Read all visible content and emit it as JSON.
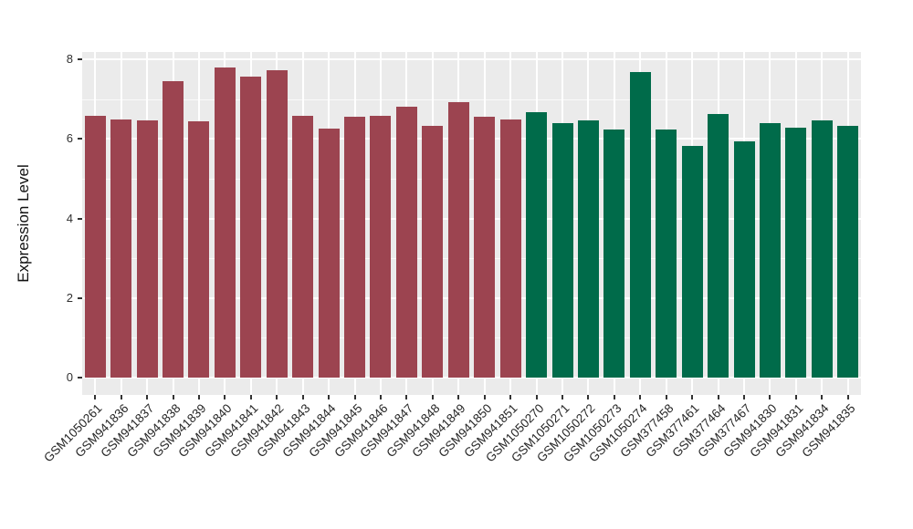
{
  "chart_data": {
    "type": "bar",
    "title": "",
    "ylabel": "Expression Level",
    "xlabel": "",
    "ylim": [
      0,
      8.19
    ],
    "yticks": [
      0,
      2,
      4,
      6,
      8
    ],
    "yticks_minor": [
      1,
      3,
      5,
      7
    ],
    "grid": "on",
    "legend": "none",
    "panel_background": "#EBEBEB",
    "gridline_color": "#FFFFFF",
    "tick_mark_color": "#333333",
    "axis_text_color": "#262626",
    "group_colors": {
      "first_17_bars": "#9C4450",
      "last_13_bars": "#006B4A"
    },
    "categories": [
      "GSM1050261",
      "GSM941836",
      "GSM941837",
      "GSM941838",
      "GSM941839",
      "GSM941840",
      "GSM941841",
      "GSM941842",
      "GSM941843",
      "GSM941844",
      "GSM941845",
      "GSM941846",
      "GSM941847",
      "GSM941848",
      "GSM941849",
      "GSM941850",
      "GSM941851",
      "GSM1050270",
      "GSM1050271",
      "GSM1050272",
      "GSM1050273",
      "GSM1050274",
      "GSM377458",
      "GSM377461",
      "GSM377464",
      "GSM377467",
      "GSM941830",
      "GSM941831",
      "GSM941834",
      "GSM941835"
    ],
    "values": [
      6.58,
      6.5,
      6.46,
      7.45,
      6.45,
      7.79,
      7.56,
      7.74,
      6.59,
      6.26,
      6.56,
      6.59,
      6.82,
      6.34,
      6.93,
      6.57,
      6.48,
      6.67,
      6.41,
      6.46,
      6.23,
      7.68,
      6.23,
      5.83,
      6.63,
      5.95,
      6.39,
      6.28,
      6.47,
      6.34
    ],
    "bar_colors": [
      "#9C4450",
      "#9C4450",
      "#9C4450",
      "#9C4450",
      "#9C4450",
      "#9C4450",
      "#9C4450",
      "#9C4450",
      "#9C4450",
      "#9C4450",
      "#9C4450",
      "#9C4450",
      "#9C4450",
      "#9C4450",
      "#9C4450",
      "#9C4450",
      "#9C4450",
      "#006B4A",
      "#006B4A",
      "#006B4A",
      "#006B4A",
      "#006B4A",
      "#006B4A",
      "#006B4A",
      "#006B4A",
      "#006B4A",
      "#006B4A",
      "#006B4A",
      "#006B4A",
      "#006B4A"
    ]
  }
}
